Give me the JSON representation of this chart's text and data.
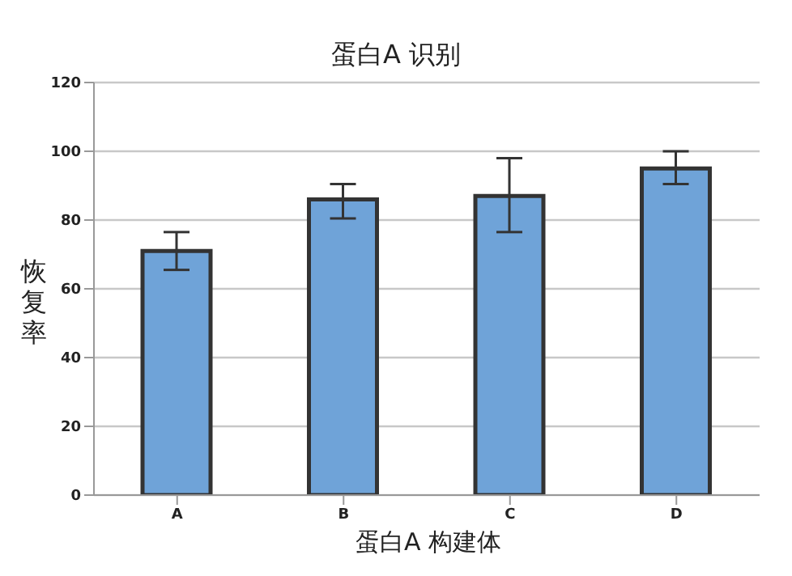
{
  "chart_data": {
    "type": "bar",
    "title": "蛋白A 识别",
    "xlabel": "蛋白A 构建体",
    "ylabel": "恢复率",
    "categories": [
      "A",
      "B",
      "C",
      "D"
    ],
    "series": [
      {
        "color": "#6fa3d8",
        "values": [
          71,
          86,
          87,
          95
        ],
        "errors": [
          [
            65.5,
            76.5
          ],
          [
            80.5,
            90.5
          ],
          [
            76.5,
            98
          ],
          [
            90.5,
            100
          ]
        ]
      }
    ],
    "ylim": [
      0,
      120
    ],
    "yticks": [
      0,
      20,
      40,
      60,
      80,
      100,
      120
    ],
    "grid": "y",
    "legend": false
  }
}
